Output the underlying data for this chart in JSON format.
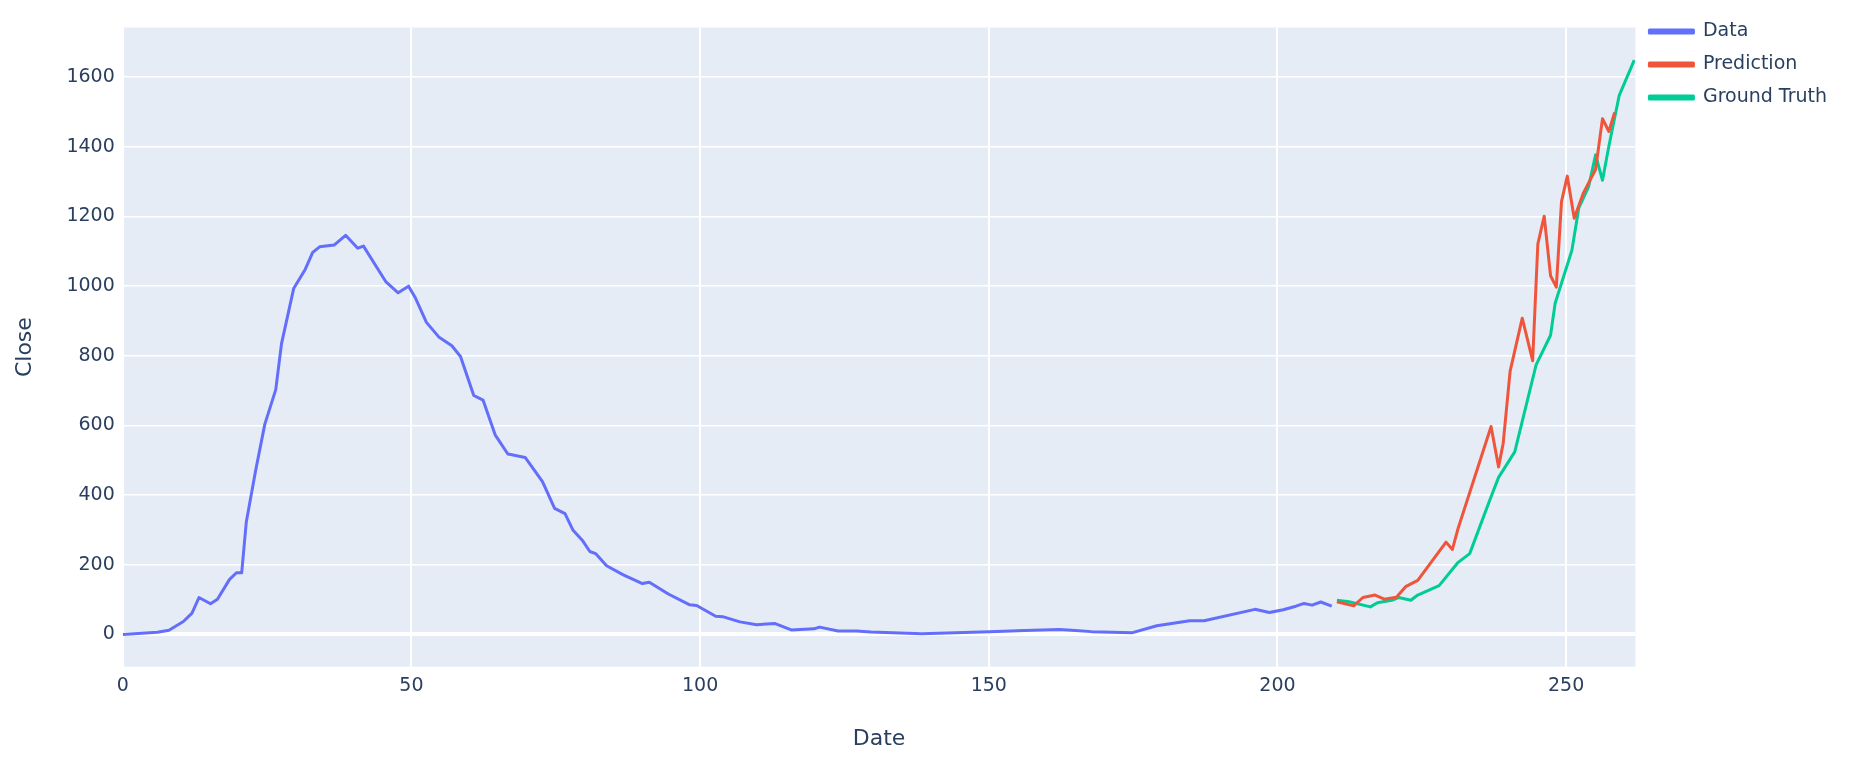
{
  "chart_data": {
    "type": "line",
    "xlabel": "Date",
    "ylabel": "Close",
    "xlim": [
      0,
      262
    ],
    "ylim": [
      -93,
      1743
    ],
    "xticks": [
      0,
      50,
      100,
      150,
      200,
      250
    ],
    "yticks": [
      0,
      200,
      400,
      600,
      800,
      1000,
      1200,
      1400,
      1600
    ],
    "grid": true,
    "legend": "top right",
    "marker": "none",
    "line_style": "solid",
    "series": [
      {
        "name": "Data",
        "color": "#636efa",
        "x": [
          0,
          6,
          8,
          10.5,
          12,
          13.2,
          15.2,
          16.4,
          18.5,
          19.7,
          20.6,
          21.4,
          23,
          24.6,
          26.5,
          27.5,
          29.6,
          31.6,
          32.9,
          34.1,
          36.6,
          38.6,
          40.7,
          41.7,
          43.5,
          45.6,
          47.7,
          49.5,
          50.6,
          52.6,
          54.8,
          57,
          58.5,
          60.8,
          62.4,
          64.5,
          66.7,
          69.7,
          72.7,
          74.8,
          76.6,
          78,
          79.7,
          80.9,
          81.9,
          83.8,
          86.7,
          90,
          91.2,
          94.5,
          98.2,
          99.4,
          102.7,
          103.9,
          106.9,
          109.8,
          113,
          115.8,
          119.7,
          120.7,
          123.9,
          127.1,
          129.6,
          138.4,
          150.1,
          162.2,
          165,
          167.8,
          174.9,
          179.1,
          184.8,
          187.3,
          196.1,
          198.6,
          201,
          203.2,
          204.6,
          206,
          207.5,
          209.4
        ],
        "values": [
          0,
          6,
          12,
          37,
          61,
          106,
          88,
          101,
          158,
          177,
          177,
          323,
          469,
          603,
          703,
          835,
          993,
          1048,
          1097,
          1113,
          1118,
          1146,
          1109,
          1115,
          1067,
          1012,
          981,
          1000,
          969,
          896,
          853,
          829,
          798,
          686,
          673,
          573,
          518,
          508,
          439,
          362,
          347,
          299,
          268,
          238,
          232,
          197,
          171,
          146,
          150,
          116,
          85,
          83,
          52,
          51,
          36,
          28,
          31,
          13,
          16,
          21,
          10,
          10,
          7,
          2,
          8,
          14,
          11,
          8,
          5,
          25,
          39,
          39,
          72,
          63,
          71,
          81,
          89,
          84,
          93,
          81
        ]
      },
      {
        "name": "Prediction",
        "color": "#ef553b",
        "x": [
          210.3,
          213.2,
          214.8,
          216.9,
          218.5,
          220.6,
          222.2,
          224.3,
          229.2,
          230.3,
          231.3,
          237,
          238.3,
          239.1,
          240.3,
          242.4,
          244.2,
          245.1,
          246.2,
          247.3,
          248.3,
          249.2,
          250.2,
          251.4,
          253,
          255.1,
          256.3,
          257.4,
          258.4
        ],
        "values": [
          94,
          82,
          106,
          113,
          101,
          107,
          137,
          155,
          265,
          244,
          305,
          597,
          481,
          549,
          756,
          908,
          786,
          1121,
          1201,
          1030,
          997,
          1243,
          1316,
          1195,
          1268,
          1335,
          1481,
          1444,
          1499
        ]
      },
      {
        "name": "Ground Truth",
        "color": "#00cc96",
        "x": [
          210.3,
          212.4,
          216.1,
          217.3,
          219.8,
          221,
          223.1,
          224.3,
          228,
          231.3,
          233.3,
          236.6,
          238.3,
          241.1,
          244.8,
          247.3,
          248.1,
          251,
          252.2,
          253.9,
          255.1,
          256.3,
          257.4,
          259.2,
          261.8
        ],
        "values": [
          98,
          94,
          79,
          91,
          98,
          106,
          98,
          113,
          140,
          207,
          232,
          378,
          451,
          524,
          774,
          859,
          951,
          1103,
          1225,
          1286,
          1377,
          1304,
          1402,
          1548,
          1649
        ]
      }
    ]
  }
}
